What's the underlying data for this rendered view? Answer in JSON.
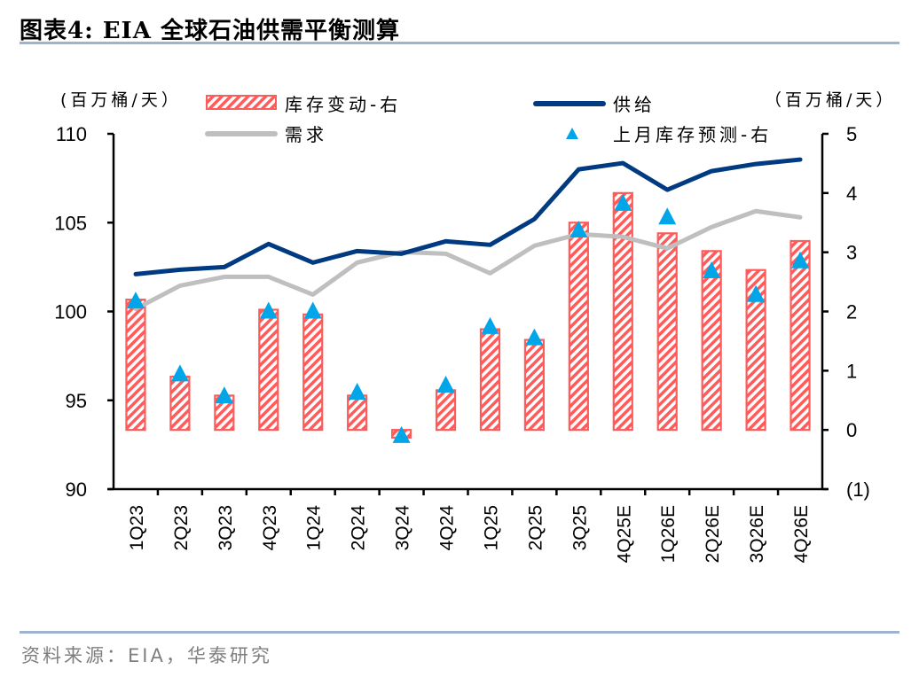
{
  "header": {
    "title": "图表4:  EIA 全球石油供需平衡测算"
  },
  "footer": {
    "source": "资料来源：EIA，华泰研究"
  },
  "colors": {
    "supply": "#003A80",
    "demand": "#BFBFBF",
    "inventory_bar": "#FF5B5B",
    "forecast_marker": "#00A6E8",
    "rule": "#9DB3CE"
  },
  "chart_data": {
    "type": "bar+line",
    "title": "EIA 全球石油供需平衡测算",
    "left_axis": {
      "label": "(百万桶/天）",
      "range": [
        90,
        110
      ],
      "ticks": [
        90,
        95,
        100,
        105,
        110
      ],
      "tick_labels": [
        "90",
        "95",
        "100",
        "105",
        "110"
      ]
    },
    "right_axis": {
      "label": "（百万桶/天）",
      "range": [
        -1,
        5
      ],
      "ticks": [
        -1,
        0,
        1,
        2,
        3,
        4,
        5
      ],
      "tick_labels": [
        "(1)",
        "0",
        "1",
        "2",
        "3",
        "4",
        "5"
      ]
    },
    "categories": [
      "1Q23",
      "2Q23",
      "3Q23",
      "4Q23",
      "1Q24",
      "2Q24",
      "3Q24",
      "4Q24",
      "1Q25",
      "2Q25",
      "3Q25",
      "4Q25E",
      "1Q26E",
      "2Q26E",
      "3Q26E",
      "4Q26E"
    ],
    "series": [
      {
        "name": "库存变动-右",
        "type": "bar",
        "axis": "right",
        "values": [
          2.2,
          0.9,
          0.58,
          2.03,
          1.95,
          0.58,
          -0.13,
          0.67,
          1.7,
          1.52,
          3.5,
          4.0,
          3.32,
          3.02,
          2.7,
          3.19
        ]
      },
      {
        "name": "供给",
        "type": "line",
        "axis": "left",
        "values": [
          102.1,
          102.35,
          102.5,
          103.8,
          102.75,
          103.4,
          103.25,
          103.95,
          103.75,
          105.2,
          108.0,
          108.35,
          106.85,
          107.9,
          108.3,
          108.55
        ]
      },
      {
        "name": "需求",
        "type": "line",
        "axis": "left",
        "values": [
          100.15,
          101.45,
          101.95,
          101.95,
          100.95,
          102.75,
          103.35,
          103.25,
          102.15,
          103.7,
          104.35,
          104.2,
          103.55,
          104.75,
          105.65,
          105.3
        ]
      },
      {
        "name": "上月库存预测-右",
        "type": "scatter",
        "marker": "triangle",
        "axis": "right",
        "values": [
          2.17,
          0.94,
          0.57,
          2.0,
          2.0,
          0.63,
          -0.1,
          0.75,
          1.74,
          1.55,
          3.37,
          3.82,
          3.59,
          2.68,
          2.28,
          2.85
        ]
      }
    ],
    "legend": {
      "placement": "top",
      "items": [
        {
          "label": "库存变动-右",
          "kind": "bar"
        },
        {
          "label": "供给",
          "kind": "line-supply"
        },
        {
          "label": "需求",
          "kind": "line-demand"
        },
        {
          "label": "上月库存预测-右",
          "kind": "triangle"
        }
      ]
    },
    "grid": false
  }
}
